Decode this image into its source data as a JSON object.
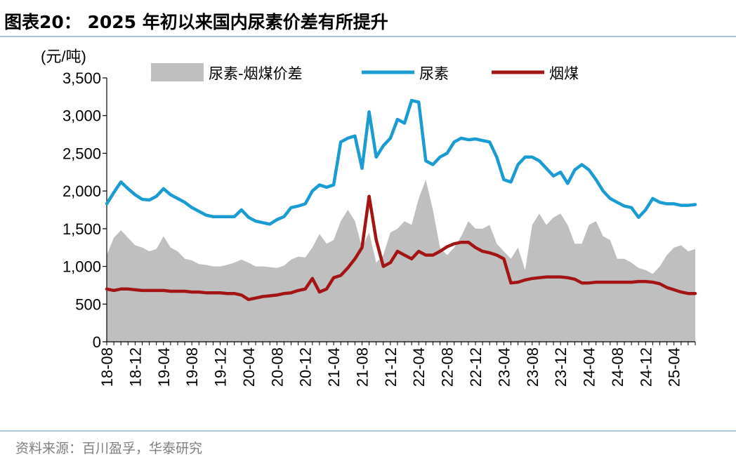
{
  "header": {
    "title": "图表20： 2025 年初以来国内尿素价差有所提升"
  },
  "footer": {
    "source": "资料来源：百川盈孚，华泰研究"
  },
  "colors": {
    "spread": "#bfbfbf",
    "urea": "#1a9bd2",
    "coal": "#a31515",
    "rule": "#8db3cf"
  },
  "chart_data": {
    "type": "line",
    "ylabel": "(元/吨)",
    "ylim": [
      0,
      3500
    ],
    "yticks": [
      0,
      500,
      1000,
      1500,
      2000,
      2500,
      3000,
      3500
    ],
    "ytick_labels": [
      "0",
      "500",
      "1,000",
      "1,500",
      "2,000",
      "2,500",
      "3,000",
      "3,500"
    ],
    "x_categories": [
      "18-08",
      "18-12",
      "19-04",
      "19-08",
      "19-12",
      "20-04",
      "20-08",
      "20-12",
      "21-04",
      "21-08",
      "21-12",
      "22-04",
      "22-08",
      "22-12",
      "23-04",
      "23-08",
      "23-12",
      "24-04",
      "24-08",
      "24-12",
      "25-04"
    ],
    "x": [
      "2018-08",
      "2018-09",
      "2018-10",
      "2018-11",
      "2018-12",
      "2019-01",
      "2019-02",
      "2019-03",
      "2019-04",
      "2019-05",
      "2019-06",
      "2019-07",
      "2019-08",
      "2019-09",
      "2019-10",
      "2019-11",
      "2019-12",
      "2020-01",
      "2020-02",
      "2020-03",
      "2020-04",
      "2020-05",
      "2020-06",
      "2020-07",
      "2020-08",
      "2020-09",
      "2020-10",
      "2020-11",
      "2020-12",
      "2021-01",
      "2021-02",
      "2021-03",
      "2021-04",
      "2021-05",
      "2021-06",
      "2021-07",
      "2021-08",
      "2021-09",
      "2021-10",
      "2021-11",
      "2021-12",
      "2022-01",
      "2022-02",
      "2022-03",
      "2022-04",
      "2022-05",
      "2022-06",
      "2022-07",
      "2022-08",
      "2022-09",
      "2022-10",
      "2022-11",
      "2022-12",
      "2023-01",
      "2023-02",
      "2023-03",
      "2023-04",
      "2023-05",
      "2023-06",
      "2023-07",
      "2023-08",
      "2023-09",
      "2023-10",
      "2023-11",
      "2023-12",
      "2024-01",
      "2024-02",
      "2024-03",
      "2024-04",
      "2024-05",
      "2024-06",
      "2024-07",
      "2024-08",
      "2024-09",
      "2024-10",
      "2024-11",
      "2024-12",
      "2025-01",
      "2025-02",
      "2025-03",
      "2025-04",
      "2025-05",
      "2025-06",
      "2025-07"
    ],
    "series": [
      {
        "name": "尿素-烟煤价差",
        "type": "area",
        "values": [
          1150,
          1380,
          1480,
          1380,
          1280,
          1250,
          1200,
          1230,
          1400,
          1250,
          1200,
          1100,
          1080,
          1030,
          1020,
          1000,
          1000,
          1020,
          1050,
          1090,
          1050,
          1000,
          1000,
          990,
          980,
          1010,
          1090,
          1130,
          1120,
          1250,
          1430,
          1300,
          1350,
          1600,
          1750,
          1600,
          1250,
          1450,
          1050,
          1150,
          1450,
          1500,
          1600,
          1550,
          1900,
          2150,
          1750,
          1250,
          1150,
          1250,
          1400,
          1600,
          1500,
          1500,
          1550,
          1300,
          1200,
          1100,
          1250,
          950,
          1550,
          1700,
          1550,
          1650,
          1700,
          1550,
          1300,
          1300,
          1550,
          1600,
          1400,
          1350,
          1100,
          1100,
          1050,
          980,
          950,
          900,
          1000,
          1150,
          1250,
          1280,
          1200,
          1230
        ]
      },
      {
        "name": "尿素",
        "type": "line",
        "values": [
          1830,
          1980,
          2120,
          2030,
          1950,
          1890,
          1880,
          1930,
          2030,
          1950,
          1900,
          1850,
          1780,
          1730,
          1680,
          1660,
          1660,
          1660,
          1660,
          1750,
          1650,
          1600,
          1580,
          1560,
          1620,
          1660,
          1780,
          1800,
          1830,
          2000,
          2080,
          2050,
          2080,
          2650,
          2700,
          2730,
          2300,
          3050,
          2450,
          2600,
          2700,
          2950,
          2900,
          3200,
          3180,
          2400,
          2350,
          2450,
          2500,
          2650,
          2700,
          2680,
          2690,
          2670,
          2650,
          2450,
          2150,
          2120,
          2350,
          2450,
          2450,
          2400,
          2300,
          2200,
          2250,
          2100,
          2280,
          2350,
          2280,
          2150,
          2000,
          1900,
          1850,
          1800,
          1780,
          1650,
          1750,
          1900,
          1850,
          1830,
          1830,
          1810,
          1810,
          1820
        ]
      },
      {
        "name": "烟煤",
        "type": "line",
        "values": [
          700,
          680,
          700,
          700,
          690,
          680,
          680,
          680,
          680,
          670,
          670,
          670,
          660,
          660,
          650,
          650,
          650,
          640,
          640,
          620,
          560,
          580,
          600,
          610,
          620,
          640,
          650,
          680,
          700,
          840,
          660,
          700,
          850,
          880,
          980,
          1100,
          1250,
          1930,
          1350,
          1000,
          1050,
          1200,
          1150,
          1100,
          1200,
          1150,
          1150,
          1200,
          1260,
          1300,
          1320,
          1320,
          1250,
          1200,
          1180,
          1150,
          1100,
          780,
          790,
          820,
          840,
          850,
          860,
          860,
          860,
          850,
          830,
          780,
          780,
          790,
          790,
          790,
          790,
          790,
          790,
          800,
          800,
          790,
          770,
          720,
          690,
          660,
          640,
          640
        ]
      }
    ],
    "legend_position": "top",
    "grid": false
  }
}
